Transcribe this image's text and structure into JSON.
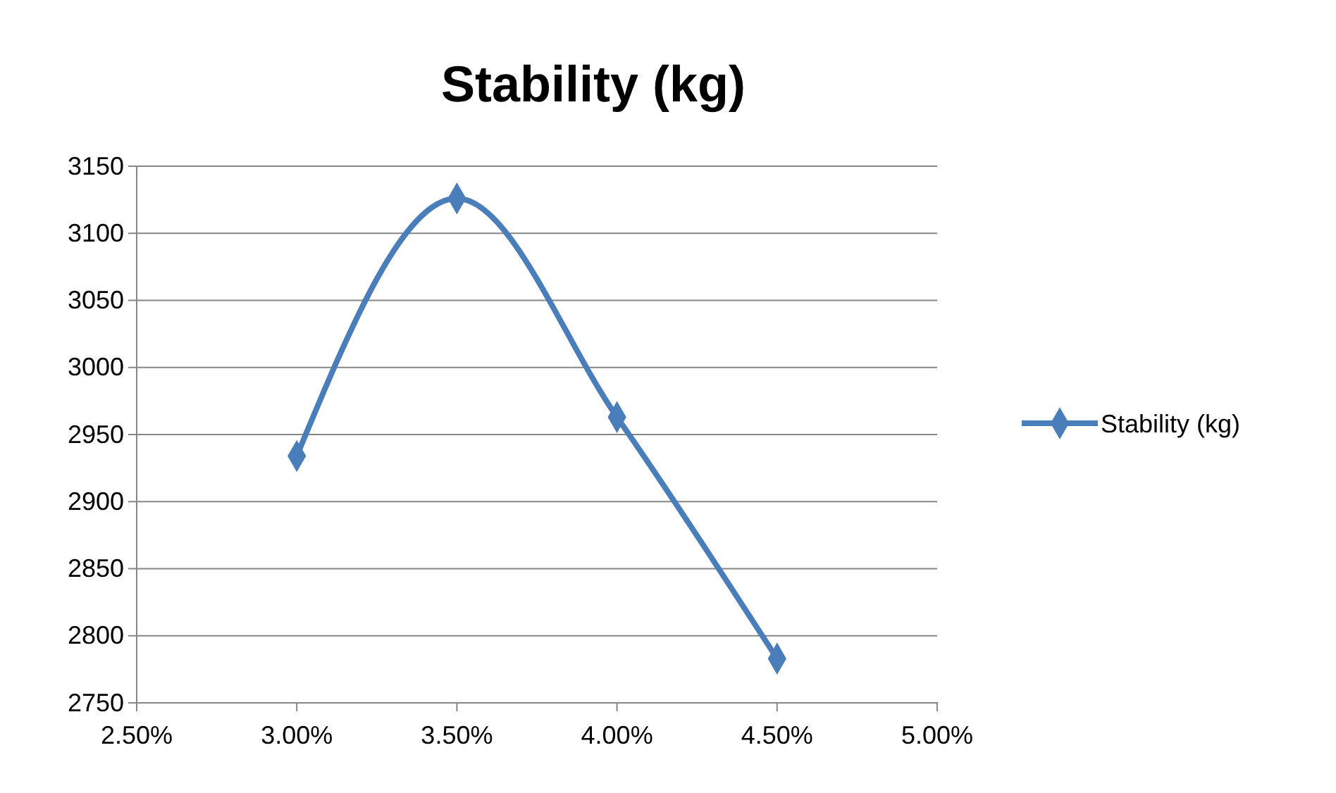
{
  "chart_data": {
    "type": "line",
    "title": "Stability (kg)",
    "x": [
      3.0,
      3.5,
      4.0,
      4.5
    ],
    "series": [
      {
        "name": "Stability (kg)",
        "color": "#4a7ebb",
        "values": [
          2934,
          3126,
          2963,
          2783
        ]
      }
    ],
    "xlim": [
      2.5,
      5
    ],
    "xticks": [
      {
        "value": 2.5,
        "label": "2.50%"
      },
      {
        "value": 3,
        "label": "3.00%"
      },
      {
        "value": 3.5,
        "label": "3.50%"
      },
      {
        "value": 4,
        "label": "4.00%"
      },
      {
        "value": 4.5,
        "label": "4.50%"
      },
      {
        "value": 5,
        "label": "5.00%"
      }
    ],
    "ylim": [
      2750,
      3150
    ],
    "yticks": [
      2750,
      2800,
      2850,
      2900,
      2950,
      3000,
      3050,
      3100,
      3150
    ],
    "grid": "y",
    "legend": "right",
    "marker": "diamond",
    "line_style": "solid"
  }
}
